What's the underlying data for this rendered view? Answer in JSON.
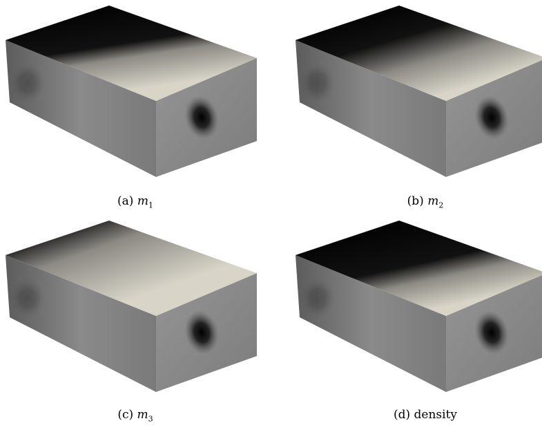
{
  "panels": [
    {
      "label": "(a)",
      "var": "m",
      "sub": "1",
      "text": "",
      "top_shading": "m1"
    },
    {
      "label": "(b)",
      "var": "m",
      "sub": "2",
      "text": "",
      "top_shading": "m2"
    },
    {
      "label": "(c)",
      "var": "m",
      "sub": "3",
      "text": "",
      "top_shading": "m3"
    },
    {
      "label": "(d)",
      "var": "",
      "sub": "",
      "text": "density",
      "top_shading": "density"
    }
  ],
  "colors": {
    "dark": "#050505",
    "light": "#d8d4c8",
    "side_gray": "#7e7e7e",
    "front_gray": "#8a8a8a"
  }
}
